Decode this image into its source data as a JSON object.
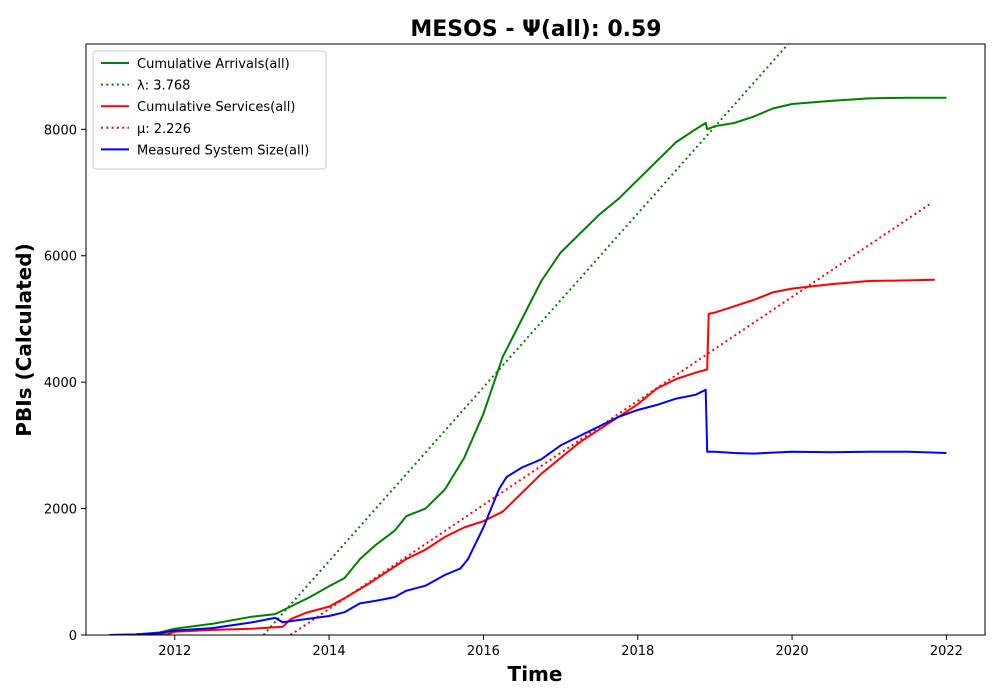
{
  "chart_data": {
    "type": "line",
    "title": "MESOS -  Ψ(all): 0.59",
    "xlabel": "Time",
    "ylabel": "PBIs (Calculated)",
    "xlim": [
      2010.85,
      2022.5
    ],
    "ylim": [
      0,
      9350
    ],
    "x_ticks": [
      2012,
      2014,
      2016,
      2018,
      2020,
      2022
    ],
    "y_ticks": [
      0,
      2000,
      4000,
      6000,
      8000
    ],
    "grid": false,
    "legend_position": "top-left",
    "series": [
      {
        "name": "Cumulative Arrivals(all)",
        "color": "#008000",
        "style": "solid",
        "points": [
          [
            2011.15,
            0
          ],
          [
            2011.5,
            10
          ],
          [
            2011.8,
            40
          ],
          [
            2012.0,
            100
          ],
          [
            2012.5,
            180
          ],
          [
            2013.0,
            290
          ],
          [
            2013.3,
            330
          ],
          [
            2013.5,
            450
          ],
          [
            2013.75,
            600
          ],
          [
            2014.0,
            770
          ],
          [
            2014.2,
            900
          ],
          [
            2014.4,
            1200
          ],
          [
            2014.6,
            1420
          ],
          [
            2014.85,
            1650
          ],
          [
            2015.0,
            1880
          ],
          [
            2015.25,
            2000
          ],
          [
            2015.5,
            2300
          ],
          [
            2015.75,
            2800
          ],
          [
            2016.0,
            3500
          ],
          [
            2016.25,
            4400
          ],
          [
            2016.5,
            5000
          ],
          [
            2016.75,
            5600
          ],
          [
            2017.0,
            6050
          ],
          [
            2017.25,
            6350
          ],
          [
            2017.5,
            6650
          ],
          [
            2017.75,
            6900
          ],
          [
            2018.0,
            7200
          ],
          [
            2018.25,
            7500
          ],
          [
            2018.5,
            7800
          ],
          [
            2018.75,
            8000
          ],
          [
            2018.88,
            8100
          ],
          [
            2018.9,
            8000
          ],
          [
            2019.0,
            8050
          ],
          [
            2019.25,
            8100
          ],
          [
            2019.5,
            8200
          ],
          [
            2019.75,
            8330
          ],
          [
            2020.0,
            8400
          ],
          [
            2020.5,
            8450
          ],
          [
            2021.0,
            8490
          ],
          [
            2021.5,
            8500
          ],
          [
            2022.0,
            8500
          ]
        ]
      },
      {
        "name": "λ: 3.768",
        "color": "#008000",
        "style": "dotted",
        "points": [
          [
            2013.15,
            0
          ],
          [
            2019.95,
            9350
          ]
        ]
      },
      {
        "name": "Cumulative Services(all)",
        "color": "#ff0000",
        "style": "solid",
        "points": [
          [
            2011.15,
            0
          ],
          [
            2011.5,
            0
          ],
          [
            2011.9,
            10
          ],
          [
            2012.0,
            50
          ],
          [
            2012.5,
            80
          ],
          [
            2013.0,
            100
          ],
          [
            2013.4,
            130
          ],
          [
            2013.5,
            250
          ],
          [
            2013.7,
            350
          ],
          [
            2014.0,
            450
          ],
          [
            2014.2,
            580
          ],
          [
            2014.5,
            800
          ],
          [
            2014.75,
            1000
          ],
          [
            2015.0,
            1200
          ],
          [
            2015.25,
            1350
          ],
          [
            2015.5,
            1550
          ],
          [
            2015.75,
            1700
          ],
          [
            2016.0,
            1800
          ],
          [
            2016.25,
            1950
          ],
          [
            2016.5,
            2250
          ],
          [
            2016.75,
            2550
          ],
          [
            2017.0,
            2800
          ],
          [
            2017.25,
            3050
          ],
          [
            2017.5,
            3250
          ],
          [
            2017.75,
            3450
          ],
          [
            2018.0,
            3650
          ],
          [
            2018.25,
            3900
          ],
          [
            2018.5,
            4050
          ],
          [
            2018.75,
            4150
          ],
          [
            2018.9,
            4200
          ],
          [
            2018.92,
            5080
          ],
          [
            2019.0,
            5100
          ],
          [
            2019.25,
            5200
          ],
          [
            2019.5,
            5300
          ],
          [
            2019.75,
            5420
          ],
          [
            2020.0,
            5480
          ],
          [
            2020.5,
            5550
          ],
          [
            2021.0,
            5600
          ],
          [
            2021.5,
            5610
          ],
          [
            2021.85,
            5620
          ]
        ]
      },
      {
        "name": "μ: 2.226",
        "color": "#ff0000",
        "style": "dotted",
        "points": [
          [
            2013.5,
            0
          ],
          [
            2021.8,
            6830
          ]
        ]
      },
      {
        "name": "Measured System Size(all)",
        "color": "#0000ff",
        "style": "solid",
        "points": [
          [
            2011.15,
            0
          ],
          [
            2011.5,
            10
          ],
          [
            2011.8,
            30
          ],
          [
            2012.0,
            70
          ],
          [
            2012.5,
            110
          ],
          [
            2013.0,
            200
          ],
          [
            2013.3,
            270
          ],
          [
            2013.4,
            200
          ],
          [
            2013.5,
            220
          ],
          [
            2013.75,
            260
          ],
          [
            2014.0,
            300
          ],
          [
            2014.2,
            360
          ],
          [
            2014.4,
            500
          ],
          [
            2014.6,
            540
          ],
          [
            2014.85,
            600
          ],
          [
            2015.0,
            700
          ],
          [
            2015.25,
            780
          ],
          [
            2015.5,
            950
          ],
          [
            2015.7,
            1050
          ],
          [
            2015.8,
            1200
          ],
          [
            2015.9,
            1450
          ],
          [
            2016.0,
            1700
          ],
          [
            2016.1,
            2000
          ],
          [
            2016.2,
            2300
          ],
          [
            2016.3,
            2500
          ],
          [
            2016.5,
            2650
          ],
          [
            2016.75,
            2780
          ],
          [
            2017.0,
            3000
          ],
          [
            2017.25,
            3150
          ],
          [
            2017.5,
            3300
          ],
          [
            2017.75,
            3450
          ],
          [
            2018.0,
            3560
          ],
          [
            2018.25,
            3640
          ],
          [
            2018.5,
            3740
          ],
          [
            2018.75,
            3800
          ],
          [
            2018.88,
            3880
          ],
          [
            2018.9,
            2900
          ],
          [
            2019.0,
            2900
          ],
          [
            2019.25,
            2880
          ],
          [
            2019.5,
            2870
          ],
          [
            2020.0,
            2900
          ],
          [
            2020.5,
            2890
          ],
          [
            2021.0,
            2900
          ],
          [
            2021.5,
            2900
          ],
          [
            2022.0,
            2880
          ]
        ]
      }
    ]
  }
}
